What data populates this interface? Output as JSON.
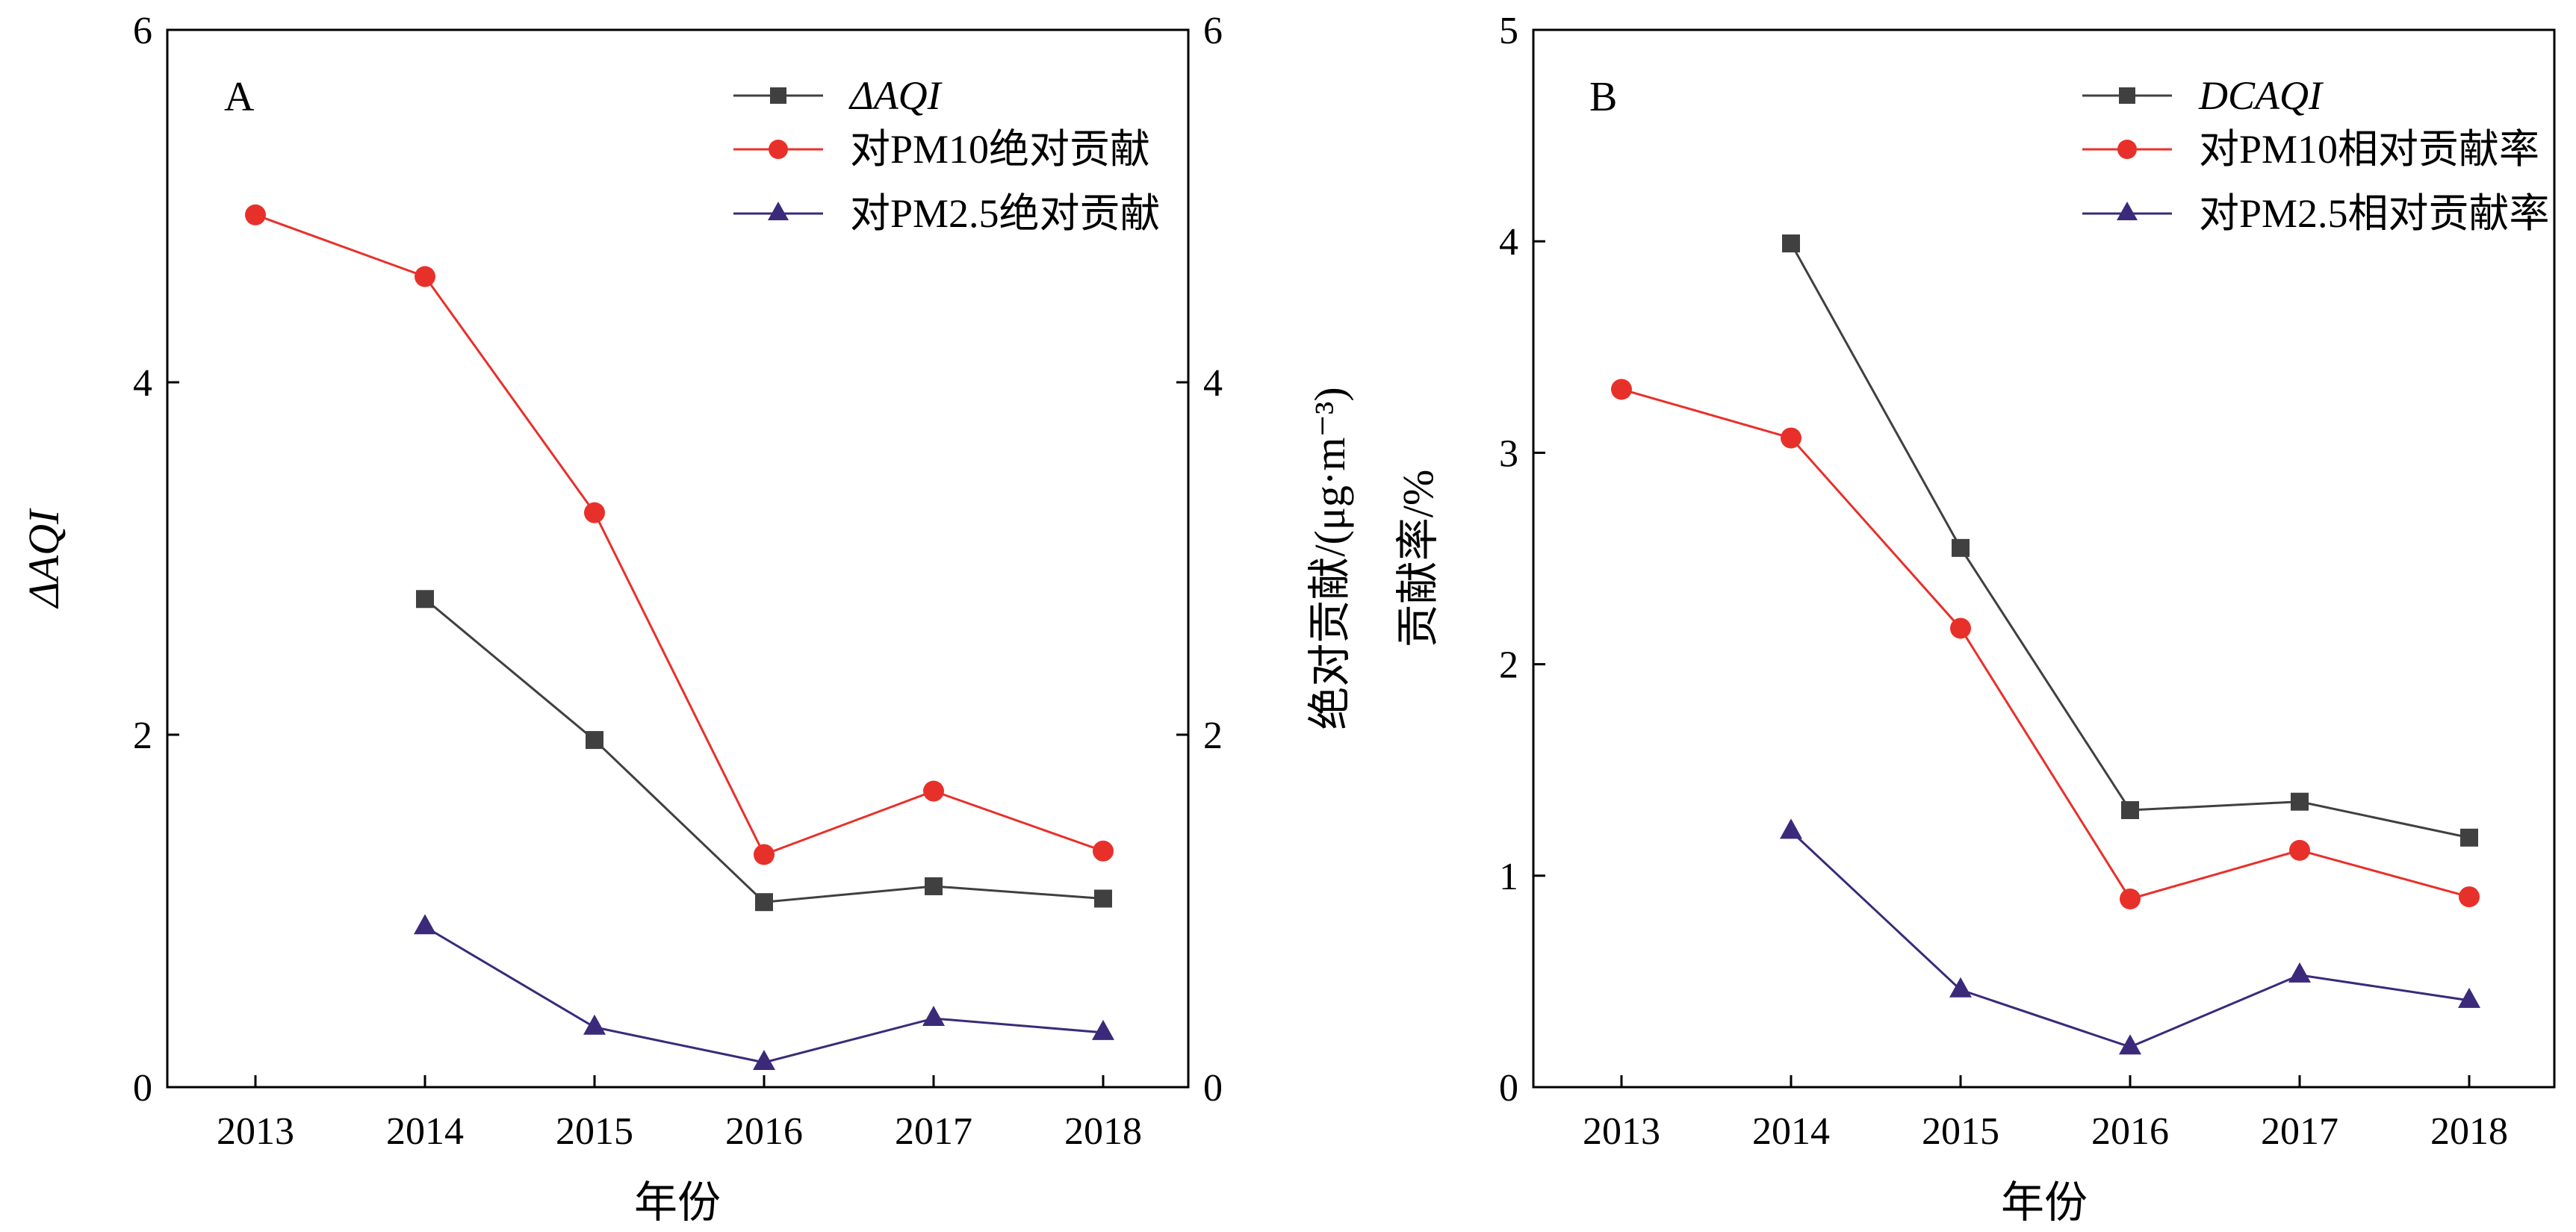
{
  "chart_data": [
    {
      "type": "line",
      "panel_label": "A",
      "x": [
        2013,
        2014,
        2015,
        2016,
        2017,
        2018
      ],
      "xlabel": "年份",
      "ylabel_left": "ΔAQI",
      "ylabel_right": "绝对贡献/(μg·m⁻³)",
      "ylim_left": [
        0,
        6
      ],
      "ylim_right": [
        0,
        6
      ],
      "yticks_left": [
        0,
        2,
        4,
        6
      ],
      "yticks_right": [
        0,
        2,
        4,
        6
      ],
      "xticks": [
        "2013",
        "2014",
        "2015",
        "2016",
        "2017",
        "2018"
      ],
      "legend_position": "top-right",
      "grid": false,
      "series": [
        {
          "name": "ΔAQI",
          "axis": "left",
          "color": "#404040",
          "marker": "square",
          "values": [
            null,
            2.77,
            1.97,
            1.05,
            1.14,
            1.07
          ]
        },
        {
          "name": "对PM10绝对贡献",
          "axis": "right",
          "color": "#e8302a",
          "marker": "circle",
          "values": [
            4.95,
            4.6,
            3.26,
            1.32,
            1.68,
            1.34
          ]
        },
        {
          "name": "对PM2.5绝对贡献",
          "axis": "right",
          "color": "#3b2a7a",
          "marker": "triangle",
          "values": [
            null,
            0.91,
            0.34,
            0.14,
            0.39,
            0.31
          ]
        }
      ]
    },
    {
      "type": "line",
      "panel_label": "B",
      "x": [
        2013,
        2014,
        2015,
        2016,
        2017,
        2018
      ],
      "xlabel": "年份",
      "ylabel": "贡献率/%",
      "ylim": [
        0,
        5
      ],
      "yticks": [
        0,
        1,
        2,
        3,
        4,
        5
      ],
      "xticks": [
        "2013",
        "2014",
        "2015",
        "2016",
        "2017",
        "2018"
      ],
      "legend_position": "top-right",
      "grid": false,
      "series": [
        {
          "name": "DCAQI",
          "color": "#404040",
          "marker": "square",
          "values": [
            null,
            3.99,
            2.55,
            1.31,
            1.35,
            1.18
          ]
        },
        {
          "name": "对PM10相对贡献率",
          "color": "#e8302a",
          "marker": "circle",
          "values": [
            3.3,
            3.07,
            2.17,
            0.89,
            1.12,
            0.9
          ]
        },
        {
          "name": "对PM2.5相对贡献率",
          "color": "#3b2a7a",
          "marker": "triangle",
          "values": [
            null,
            1.21,
            0.46,
            0.19,
            0.53,
            0.41
          ]
        }
      ]
    }
  ]
}
